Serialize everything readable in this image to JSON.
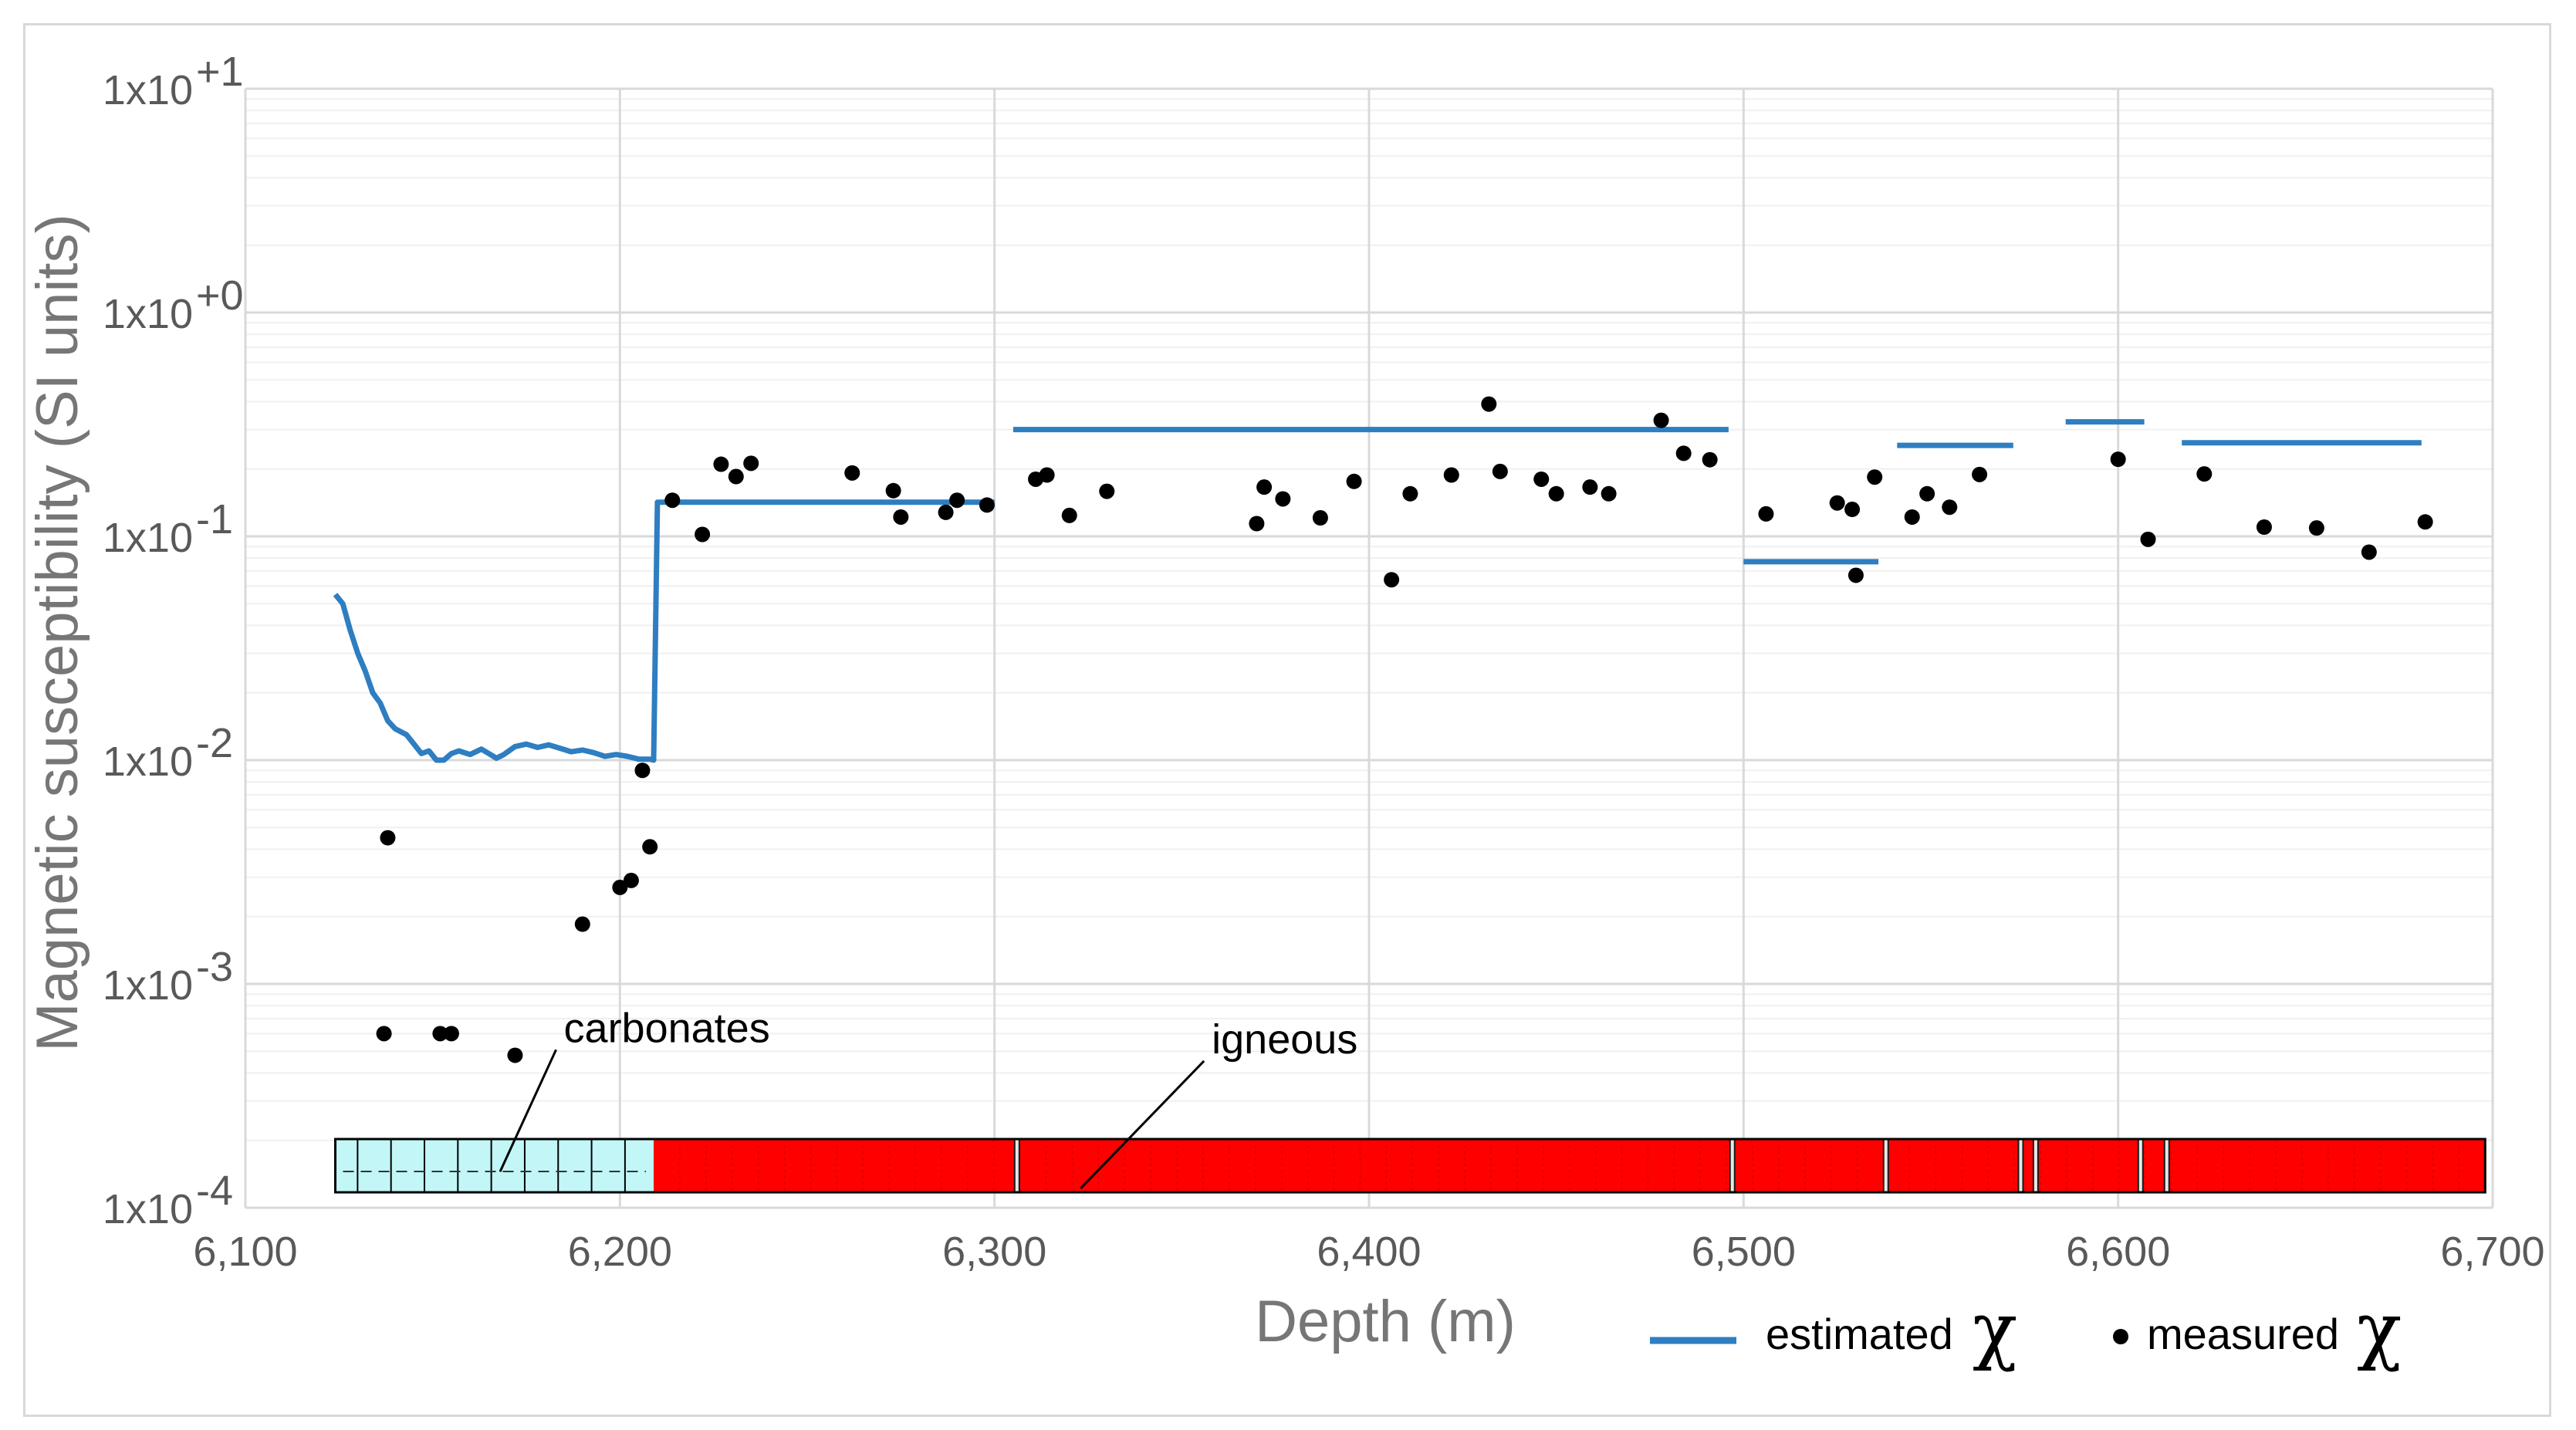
{
  "chart_data": {
    "type": "scatter",
    "xlabel": "Depth (m)",
    "ylabel": "Magnetic susceptibility (SI units)",
    "xlim": [
      6100,
      6700
    ],
    "ylim": [
      0.0001,
      10
    ],
    "yscale": "log",
    "grid": true,
    "legend_placement": "bottom-right",
    "x_ticks": [
      {
        "value": 6100,
        "label": "6,100"
      },
      {
        "value": 6200,
        "label": "6,200"
      },
      {
        "value": 6300,
        "label": "6,300"
      },
      {
        "value": 6400,
        "label": "6,400"
      },
      {
        "value": 6500,
        "label": "6,500"
      },
      {
        "value": 6600,
        "label": "6,600"
      },
      {
        "value": 6700,
        "label": "6,700"
      }
    ],
    "y_ticks": [
      {
        "value": 10,
        "base": "1x10",
        "exp": "+1"
      },
      {
        "value": 1,
        "base": "1x10",
        "exp": "+0"
      },
      {
        "value": 0.1,
        "base": "1x10",
        "exp": "-1"
      },
      {
        "value": 0.01,
        "base": "1x10",
        "exp": "-2"
      },
      {
        "value": 0.001,
        "base": "1x10",
        "exp": "-3"
      },
      {
        "value": 0.0001,
        "base": "1x10",
        "exp": "-4"
      }
    ],
    "series": [
      {
        "name": "estimated χ",
        "label_text": "estimated",
        "symbol": "χ",
        "type": "line",
        "color": "#2e7ec1",
        "segments": [
          [
            [
              6124,
              0.055
            ],
            [
              6126,
              0.05
            ],
            [
              6128,
              0.038
            ],
            [
              6130,
              0.03
            ],
            [
              6132,
              0.025
            ],
            [
              6134,
              0.02
            ],
            [
              6136,
              0.018
            ],
            [
              6138,
              0.015
            ],
            [
              6140,
              0.0138
            ],
            [
              6143,
              0.013
            ],
            [
              6145,
              0.0118
            ],
            [
              6147,
              0.0107
            ],
            [
              6149,
              0.011
            ],
            [
              6151,
              0.01
            ],
            [
              6153,
              0.01
            ],
            [
              6155,
              0.0107
            ],
            [
              6157,
              0.011
            ],
            [
              6160,
              0.0106
            ],
            [
              6163,
              0.0112
            ],
            [
              6165,
              0.0107
            ],
            [
              6167,
              0.0102
            ],
            [
              6169,
              0.0106
            ],
            [
              6172,
              0.0115
            ],
            [
              6175,
              0.0118
            ],
            [
              6178,
              0.0114
            ],
            [
              6181,
              0.0117
            ],
            [
              6184,
              0.0113
            ],
            [
              6187,
              0.0109
            ],
            [
              6190,
              0.0111
            ],
            [
              6193,
              0.0108
            ],
            [
              6196,
              0.0104
            ],
            [
              6199,
              0.0106
            ],
            [
              6202,
              0.0104
            ],
            [
              6205,
              0.0101
            ],
            [
              6208,
              0.0101
            ],
            [
              6209,
              0.01
            ],
            [
              6210,
              0.142
            ],
            [
              6300,
              0.142
            ]
          ],
          [
            [
              6305,
              0.3
            ],
            [
              6496,
              0.3
            ]
          ],
          [
            [
              6500,
              0.077
            ],
            [
              6536,
              0.077
            ]
          ],
          [
            [
              6541,
              0.255
            ],
            [
              6572,
              0.255
            ]
          ],
          [
            [
              6586,
              0.325
            ],
            [
              6607,
              0.325
            ]
          ],
          [
            [
              6617,
              0.262
            ],
            [
              6681,
              0.262
            ]
          ]
        ]
      },
      {
        "name": "measured χ",
        "label_text": "measured",
        "symbol": "χ",
        "type": "scatter",
        "color": "#000000",
        "points": [
          [
            6137,
            0.0006
          ],
          [
            6138,
            0.0045
          ],
          [
            6152,
            0.0006
          ],
          [
            6155,
            0.0006
          ],
          [
            6172,
            0.00048
          ],
          [
            6190,
            0.00185
          ],
          [
            6200,
            0.0027
          ],
          [
            6203,
            0.0029
          ],
          [
            6206,
            0.009
          ],
          [
            6208,
            0.0041
          ],
          [
            6214,
            0.145
          ],
          [
            6222,
            0.102
          ],
          [
            6227,
            0.21
          ],
          [
            6231,
            0.185
          ],
          [
            6235,
            0.212
          ],
          [
            6262,
            0.192
          ],
          [
            6273,
            0.16
          ],
          [
            6275,
            0.122
          ],
          [
            6287,
            0.128
          ],
          [
            6290,
            0.145
          ],
          [
            6298,
            0.138
          ],
          [
            6311,
            0.18
          ],
          [
            6314,
            0.188
          ],
          [
            6320,
            0.124
          ],
          [
            6330,
            0.159
          ],
          [
            6370,
            0.114
          ],
          [
            6372,
            0.166
          ],
          [
            6377,
            0.147
          ],
          [
            6387,
            0.121
          ],
          [
            6396,
            0.176
          ],
          [
            6406,
            0.064
          ],
          [
            6411,
            0.155
          ],
          [
            6422,
            0.188
          ],
          [
            6432,
            0.39
          ],
          [
            6435,
            0.195
          ],
          [
            6446,
            0.18
          ],
          [
            6450,
            0.155
          ],
          [
            6459,
            0.166
          ],
          [
            6464,
            0.155
          ],
          [
            6478,
            0.33
          ],
          [
            6484,
            0.235
          ],
          [
            6491,
            0.22
          ],
          [
            6506,
            0.126
          ],
          [
            6525,
            0.141
          ],
          [
            6529,
            0.132
          ],
          [
            6530,
            0.067
          ],
          [
            6535,
            0.184
          ],
          [
            6545,
            0.122
          ],
          [
            6549,
            0.155
          ],
          [
            6555,
            0.135
          ],
          [
            6563,
            0.189
          ],
          [
            6600,
            0.221
          ],
          [
            6608,
            0.097
          ],
          [
            6623,
            0.19
          ],
          [
            6639,
            0.11
          ],
          [
            6653,
            0.109
          ],
          [
            6667,
            0.085
          ],
          [
            6682,
            0.116
          ]
        ]
      }
    ],
    "lithology": {
      "segments": [
        {
          "start": 6124,
          "end": 6209,
          "type": "carbonates",
          "color": "#c2f6f7"
        },
        {
          "start": 6209,
          "end": 6698,
          "type": "igneous",
          "color": "#ff0000"
        }
      ],
      "gaps": [
        6306,
        6497,
        6538,
        6574,
        6578,
        6606,
        6613
      ],
      "annotations": [
        {
          "text": "carbonates",
          "x": 6185,
          "y": 0.00055,
          "arrow_to": [
            6168,
            0.000145
          ]
        },
        {
          "text": "igneous",
          "x": 6358,
          "y": 0.00049,
          "arrow_to": [
            6323,
            0.000122
          ]
        }
      ]
    }
  }
}
